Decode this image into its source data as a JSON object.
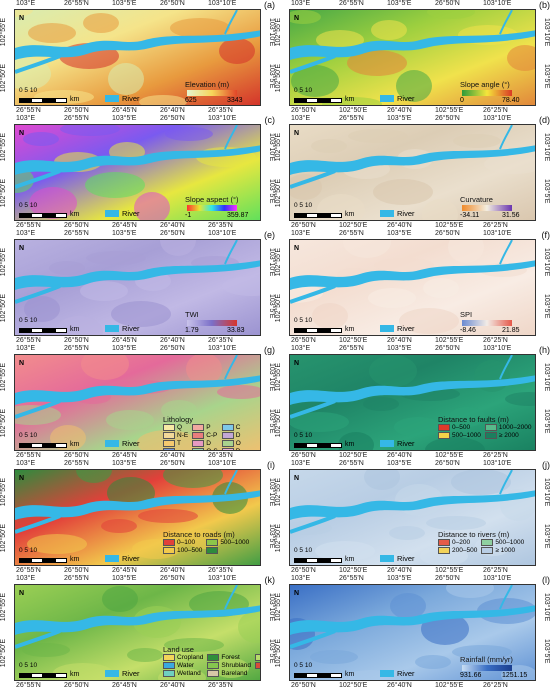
{
  "axes": {
    "top_ticks": [
      "103°E",
      "26°55'N",
      "103°5'E",
      "26°50'N",
      "103°10'E"
    ],
    "bottom_ticks": [
      "26°55'N",
      "26°50'N",
      "26°45'N",
      "26°40'N",
      "26°35'N",
      "102°50'E",
      "102°55'E",
      "26°25'N"
    ],
    "left_ticks": [
      "102°55'E",
      "102°50'E"
    ],
    "right_ticks": [
      "103°10'E",
      "103°5'E"
    ]
  },
  "scalebar": {
    "nums": "0   5   10",
    "unit": "km"
  },
  "river_label": "River",
  "north_label": "N",
  "panels": [
    {
      "id": "a",
      "label": "(a)",
      "legend_title": "Elevation (m)",
      "min": "625",
      "max": "3343",
      "bg": [
        "#d9ecb0",
        "#f5e48a",
        "#e89a3e",
        "#d3302a"
      ],
      "ramp": [
        "#e5f5d0",
        "#f6d65a",
        "#e24628"
      ]
    },
    {
      "id": "b",
      "label": "(b)",
      "legend_title": "Slope angle (°)",
      "min": "0",
      "max": "78.40",
      "bg": [
        "#47a846",
        "#9ccf3f",
        "#f0e24c",
        "#e1843a"
      ],
      "ramp": [
        "#2c9a3a",
        "#f5e63b",
        "#d93a25"
      ]
    },
    {
      "id": "c",
      "label": "(c)",
      "legend_title": "Slope aspect (°)",
      "min": "-1",
      "max": "359.87",
      "bg": [
        "#e04ad0",
        "#7a5af0",
        "#e7e740",
        "#5ce05c"
      ],
      "ramp": [
        "#ff3030",
        "#e6e630",
        "#30e6e6",
        "#3030ff",
        "#ff30ff"
      ]
    },
    {
      "id": "d",
      "label": "(d)",
      "legend_title": "Curvature",
      "min": "-34.11",
      "max": "31.56",
      "bg": [
        "#e9dcc6",
        "#dccdb5",
        "#eadfcd",
        "#d9c6ad"
      ],
      "ramp": [
        "#f08a2a",
        "#f3eee0",
        "#6a35b0"
      ]
    },
    {
      "id": "e",
      "label": "(e)",
      "legend_title": "TWI",
      "min": "1.79",
      "max": "33.83",
      "bg": [
        "#b9b1e0",
        "#a79fd6",
        "#c1b9e5",
        "#9a92d0"
      ],
      "ramp": [
        "#c9c3ea",
        "#7b6fc8",
        "#d8352a"
      ]
    },
    {
      "id": "f",
      "label": "(f)",
      "legend_title": "SPI",
      "min": "-8.46",
      "max": "21.85",
      "bg": [
        "#f6e7dd",
        "#f3ddd0",
        "#f8ece4",
        "#efd6c7"
      ],
      "ramp": [
        "#6b8ad1",
        "#f2ece6",
        "#e5584a"
      ]
    },
    {
      "id": "g",
      "label": "(g)",
      "legend_title": "Lithology",
      "min": "",
      "max": "",
      "bg": [
        "#f28d8d",
        "#e46a9a",
        "#a8d48c",
        "#f0c070"
      ],
      "ramp": [],
      "categories": [
        {
          "label": "Q",
          "color": "#f6e9a5"
        },
        {
          "label": "P",
          "color": "#f1a8a0"
        },
        {
          "label": "C",
          "color": "#7fc7e8"
        },
        {
          "label": "N-E",
          "color": "#f3d99a"
        },
        {
          "label": "C-P",
          "color": "#e97d7d"
        },
        {
          "label": "D",
          "color": "#c3a7d6"
        },
        {
          "label": "T",
          "color": "#f5c96f"
        },
        {
          "label": "D",
          "color": "#e69ac2"
        },
        {
          "label": "O",
          "color": "#a9d38e"
        },
        {
          "label": "",
          "color": "#7a9bd8"
        },
        {
          "label": "O-S",
          "color": "#9bd6b3"
        },
        {
          "label": "P",
          "color": "#e7b2d6"
        }
      ]
    },
    {
      "id": "h",
      "label": "(h)",
      "legend_title": "Distance to faults (m)",
      "min": "",
      "max": "",
      "bg": [
        "#27946e",
        "#1f8466",
        "#2ca47a",
        "#198060"
      ],
      "ramp": [],
      "categories": [
        {
          "label": "0–500",
          "color": "#e03a2a"
        },
        {
          "label": "1000–2000",
          "color": "#58b98a"
        },
        {
          "label": "500–1000",
          "color": "#f4d24a"
        },
        {
          "label": "≥ 2000",
          "color": "#1c7e5e"
        }
      ]
    },
    {
      "id": "i",
      "label": "(i)",
      "legend_title": "Distance to roads (m)",
      "min": "",
      "max": "",
      "bg": [
        "#2e8b3d",
        "#e2403a",
        "#f2c94c",
        "#3a9c44"
      ],
      "ramp": [],
      "categories": [
        {
          "label": "0–100",
          "color": "#e2403a"
        },
        {
          "label": "500–1000",
          "color": "#8cc54a"
        },
        {
          "label": "100–500",
          "color": "#f2c94c"
        },
        {
          "label": "",
          "color": "#2e8b3d"
        }
      ]
    },
    {
      "id": "j",
      "label": "(j)",
      "legend_title": "Distance to rivers (m)",
      "min": "",
      "max": "",
      "bg": [
        "#c6d8ea",
        "#b8cde4",
        "#d2e0ee",
        "#adc5df"
      ],
      "ramp": [],
      "categories": [
        {
          "label": "0–200",
          "color": "#e65b48"
        },
        {
          "label": "500–1000",
          "color": "#8fd0a0"
        },
        {
          "label": "200–500",
          "color": "#f3d35a"
        },
        {
          "label": "≥ 1000",
          "color": "#b8cde4"
        }
      ]
    },
    {
      "id": "k",
      "label": "(k)",
      "legend_title": "Land use",
      "min": "",
      "max": "",
      "bg": [
        "#9bcf55",
        "#6db648",
        "#c5df6a",
        "#4ea641"
      ],
      "ramp": [],
      "categories": [
        {
          "label": "Cropland",
          "color": "#f3d45a"
        },
        {
          "label": "Forest",
          "color": "#2f8f3a"
        },
        {
          "label": "Grassland",
          "color": "#b7dc6a"
        },
        {
          "label": "Water",
          "color": "#3aa9e0"
        },
        {
          "label": "Shrubland",
          "color": "#86c64e"
        },
        {
          "label": "Impervious surface",
          "color": "#d94a3a"
        },
        {
          "label": "Wetland",
          "color": "#6fd0c0"
        },
        {
          "label": "Bareland",
          "color": "#d8c7a8"
        }
      ]
    },
    {
      "id": "l",
      "label": "(l)",
      "legend_title": "Rainfall (mm/yr)",
      "min": "931.66",
      "max": "1251.15",
      "bg": [
        "#3a6fc5",
        "#7aa8db",
        "#a9c9ea",
        "#5c8fd3"
      ],
      "ramp": [
        "#c9def3",
        "#3a6fc5",
        "#1a3e8f"
      ]
    }
  ]
}
